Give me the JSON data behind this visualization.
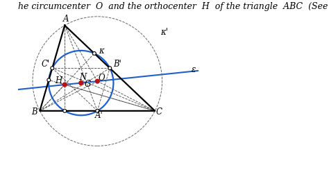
{
  "title_text": "he circumcenter  O  and the orthocenter  H  of the triangle  ABC  (See",
  "title_fontsize": 9,
  "figsize": [
    4.74,
    2.48
  ],
  "dpi": 100,
  "bg_color": "white",
  "triangle_color": "black",
  "triangle_lw": 1.6,
  "dashed_color": "#555555",
  "dashed_lw": 0.65,
  "circle_nine_color": "#2060cc",
  "circle_nine_lw": 1.6,
  "circle_circum_color": "#666666",
  "circle_circum_lw": 0.7,
  "euler_line_color": "#2060cc",
  "euler_line_lw": 1.5,
  "point_white_r": 0.011,
  "point_red_r": 0.013,
  "point_special_color": "#bb1111",
  "label_fontsize": 8.5,
  "A": [
    0.24,
    0.82
  ],
  "B": [
    0.08,
    0.27
  ],
  "C": [
    0.82,
    0.27
  ],
  "xlim": [
    -0.06,
    1.1
  ],
  "ylim": [
    -0.12,
    0.98
  ]
}
